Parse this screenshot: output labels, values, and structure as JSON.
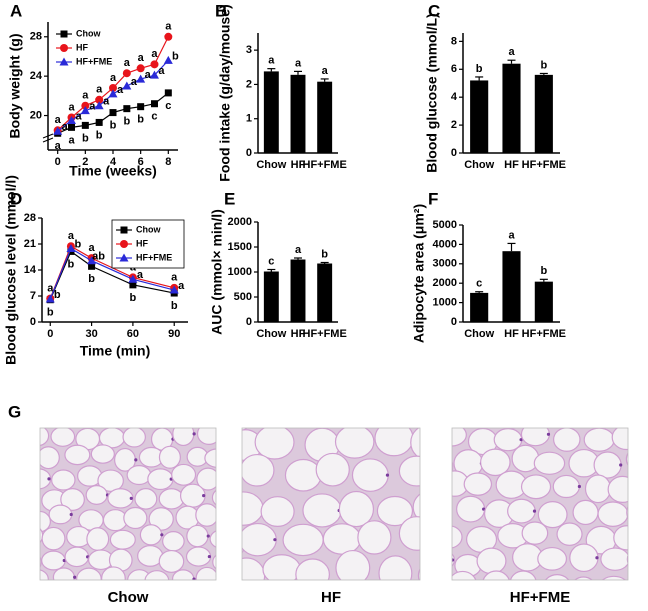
{
  "chart_data": [
    {
      "type": "line",
      "panel": "A",
      "xlabel": "Time (weeks)",
      "ylabel": "Body weight (g)",
      "x": [
        0,
        1,
        2,
        3,
        4,
        5,
        6,
        7,
        8
      ],
      "xlim": [
        -0.7,
        8.7
      ],
      "xticks": [
        0,
        2,
        4,
        6,
        8
      ],
      "ylim": [
        16.5,
        29.5
      ],
      "yticks": [
        20,
        24,
        28
      ],
      "legend": "upper left",
      "series": [
        {
          "name": "Chow",
          "color": "#000000",
          "values": [
            18.2,
            18.8,
            19.0,
            19.3,
            20.3,
            20.7,
            20.9,
            21.2,
            22.3
          ],
          "letters": [
            "a",
            "a",
            "b",
            "b",
            "b",
            "b",
            "b",
            "c",
            "c"
          ]
        },
        {
          "name": "HF",
          "color": "#e8141b",
          "values": [
            18.5,
            19.8,
            21.0,
            21.6,
            22.8,
            24.3,
            24.8,
            25.2,
            28.0
          ],
          "letters": [
            "a",
            "a",
            "a",
            "a",
            "a",
            "a",
            "a",
            "a",
            "a"
          ]
        },
        {
          "name": "HF+FME",
          "color": "#2a2ad8",
          "values": [
            18.4,
            19.5,
            20.5,
            21.0,
            22.2,
            23.0,
            23.7,
            24.1,
            25.6
          ],
          "letters": [
            "a",
            "a",
            "a",
            "a",
            "a",
            "a",
            "a",
            "a",
            "b"
          ]
        }
      ]
    },
    {
      "type": "bar",
      "panel": "B",
      "ylabel": "Food intake (g/day/mouse)",
      "categories": [
        "Chow",
        "HF",
        "HF+FME"
      ],
      "values": [
        2.38,
        2.28,
        2.08
      ],
      "errors": [
        0.08,
        0.1,
        0.08
      ],
      "letters": [
        "a",
        "a",
        "a"
      ],
      "color": "#000000",
      "ylim": [
        0,
        3.5
      ],
      "yticks": [
        0,
        1,
        2,
        3
      ]
    },
    {
      "type": "bar",
      "panel": "C",
      "ylabel": "Blood glucose (mmol/L)",
      "categories": [
        "Chow",
        "HF",
        "HF+FME"
      ],
      "values": [
        5.2,
        6.4,
        5.6
      ],
      "errors": [
        0.25,
        0.25,
        0.1
      ],
      "letters": [
        "b",
        "a",
        "b"
      ],
      "color": "#000000",
      "ylim": [
        0,
        8.6
      ],
      "yticks": [
        0,
        2,
        4,
        6,
        8
      ]
    },
    {
      "type": "line",
      "panel": "D",
      "xlabel": "Time (min)",
      "ylabel": "Blood glucose level (mmol/l)",
      "x": [
        0,
        15,
        30,
        60,
        90
      ],
      "xlim": [
        -6,
        100
      ],
      "xticks": [
        0,
        30,
        60,
        90
      ],
      "ylim": [
        0,
        28
      ],
      "yticks": [
        0,
        7,
        14,
        21,
        28
      ],
      "legend": "upper right",
      "series": [
        {
          "name": "Chow",
          "color": "#000000",
          "values": [
            6.0,
            19.0,
            15.0,
            10.0,
            7.8
          ],
          "letters": [
            "b",
            "b",
            "b",
            "b",
            "b"
          ]
        },
        {
          "name": "HF",
          "color": "#e8141b",
          "values": [
            6.3,
            20.4,
            17.2,
            12.0,
            9.2
          ],
          "letters": [
            "a",
            "a",
            "a",
            "a",
            "a"
          ]
        },
        {
          "name": "HF+FME",
          "color": "#2a2ad8",
          "values": [
            6.2,
            19.8,
            16.5,
            11.5,
            8.6
          ],
          "letters": [
            "b",
            "b",
            "ab",
            "a",
            "a"
          ]
        }
      ]
    },
    {
      "type": "bar",
      "panel": "E",
      "ylabel": "AUC (mmol× min/l)",
      "categories": [
        "Chow",
        "HF",
        "HF+FME"
      ],
      "values": [
        1010,
        1250,
        1170
      ],
      "errors": [
        40,
        30,
        20
      ],
      "letters": [
        "c",
        "a",
        "b"
      ],
      "color": "#000000",
      "ylim": [
        0,
        2000
      ],
      "yticks": [
        0,
        500,
        1000,
        1500,
        2000
      ]
    },
    {
      "type": "bar",
      "panel": "F",
      "ylabel": "Adipocyte area (μm²)",
      "categories": [
        "Chow",
        "HF",
        "HF+FME"
      ],
      "values": [
        1500,
        3650,
        2080
      ],
      "errors": [
        60,
        400,
        120
      ],
      "letters": [
        "c",
        "a",
        "b"
      ],
      "color": "#000000",
      "ylim": [
        0,
        5000
      ],
      "yticks": [
        0,
        1000,
        2000,
        3000,
        4000,
        5000
      ]
    }
  ],
  "panel_g": {
    "panel": "G",
    "captions": [
      "Chow",
      "HF",
      "HF+FME"
    ]
  }
}
